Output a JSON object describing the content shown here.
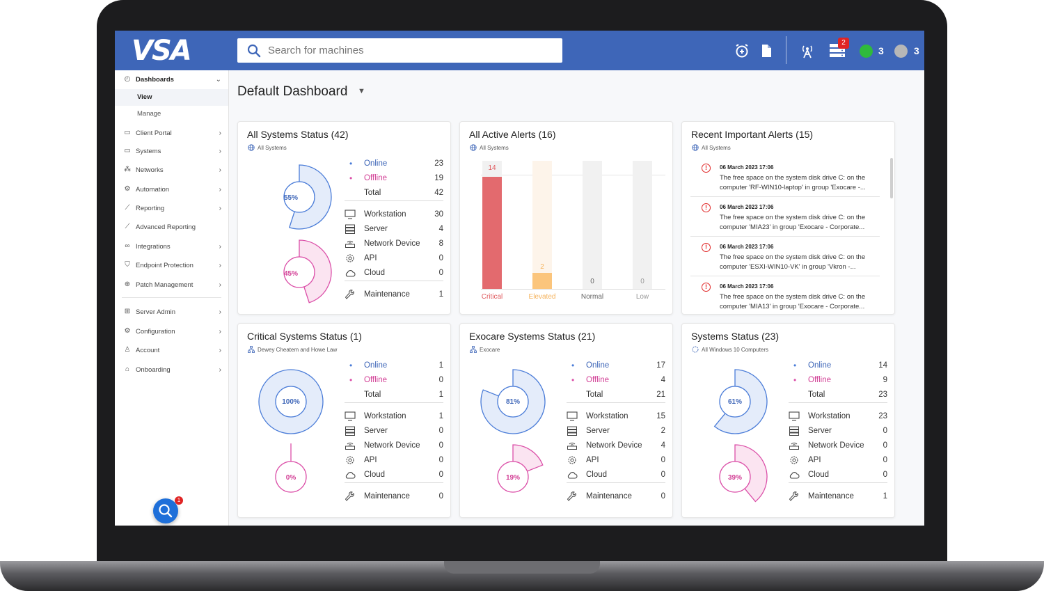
{
  "app": {
    "logo": "VSA"
  },
  "header": {
    "search_placeholder": "Search for machines",
    "notifications_count": "2",
    "online_count": "3",
    "offline_count": "3",
    "colors": {
      "bar": "#3e66b8",
      "online": "#2fba3c",
      "offline": "#b7b7b7",
      "badge": "#e02424"
    }
  },
  "sidebar": {
    "dashboards": "Dashboards",
    "view": "View",
    "manage": "Manage",
    "items": [
      {
        "label": "Client Portal",
        "icon": "window-icon"
      },
      {
        "label": "Systems",
        "icon": "monitor-icon"
      },
      {
        "label": "Networks",
        "icon": "network-icon"
      },
      {
        "label": "Automation",
        "icon": "automation-icon"
      },
      {
        "label": "Reporting",
        "icon": "chart-icon"
      },
      {
        "label": "Advanced Reporting",
        "icon": "chart-icon"
      },
      {
        "label": "Integrations",
        "icon": "infinity-icon"
      },
      {
        "label": "Endpoint Protection",
        "icon": "shield-icon"
      },
      {
        "label": "Patch Management",
        "icon": "patch-icon"
      },
      {
        "label": "Server Admin",
        "icon": "sitemap-icon"
      },
      {
        "label": "Configuration",
        "icon": "gear-icon"
      },
      {
        "label": "Account",
        "icon": "user-icon"
      },
      {
        "label": "Onboarding",
        "icon": "onboarding-icon"
      }
    ],
    "help_badge": "1"
  },
  "page": {
    "title": "Default Dashboard"
  },
  "status_labels": {
    "online": "Online",
    "offline": "Offline",
    "total": "Total",
    "workstation": "Workstation",
    "server": "Server",
    "network": "Network Device",
    "api": "API",
    "cloud": "Cloud",
    "maintenance": "Maintenance"
  },
  "cards": {
    "all_systems": {
      "title": "All Systems Status (42)",
      "scope": "All Systems",
      "online_pct": "55%",
      "offline_pct": "45%",
      "online": "23",
      "offline": "19",
      "total": "42",
      "workstation": "30",
      "server": "4",
      "network": "8",
      "api": "0",
      "cloud": "0",
      "maintenance": "1"
    },
    "alerts": {
      "title": "All Active Alerts (16)",
      "scope": "All Systems"
    },
    "recent": {
      "title": "Recent Important Alerts (15)",
      "scope": "All Systems",
      "items": [
        {
          "date": "06 March 2023 17:06",
          "line1": "The free space on the system disk drive C: on the",
          "line2": "computer 'RF-WIN10-laptop' in group 'Exocare -..."
        },
        {
          "date": "06 March 2023 17:06",
          "line1": "The free space on the system disk drive C: on the",
          "line2": "computer 'MIA23' in group 'Exocare - Corporate..."
        },
        {
          "date": "06 March 2023 17:06",
          "line1": "The free space on the system disk drive C: on the",
          "line2": "computer 'ESXI-WIN10-VK' in group 'Vkron -..."
        },
        {
          "date": "06 March 2023 17:06",
          "line1": "The free space on the system disk drive C: on the",
          "line2": "computer 'MIA13' in group 'Exocare - Corporate..."
        }
      ]
    },
    "critical": {
      "title": "Critical Systems Status (1)",
      "scope": "Dewey Cheatem and Howe Law",
      "online_pct": "100%",
      "offline_pct": "0%",
      "online": "1",
      "offline": "0",
      "total": "1",
      "workstation": "1",
      "server": "0",
      "network": "0",
      "api": "0",
      "cloud": "0",
      "maintenance": "0"
    },
    "exocare": {
      "title": "Exocare Systems Status (21)",
      "scope": "Exocare",
      "online_pct": "81%",
      "offline_pct": "19%",
      "online": "17",
      "offline": "4",
      "total": "21",
      "workstation": "15",
      "server": "2",
      "network": "4",
      "api": "0",
      "cloud": "0",
      "maintenance": "0"
    },
    "systems": {
      "title": "Systems Status (23)",
      "scope": "All Windows 10 Computers",
      "online_pct": "61%",
      "offline_pct": "39%",
      "online": "14",
      "offline": "9",
      "total": "23",
      "workstation": "23",
      "server": "0",
      "network": "0",
      "api": "0",
      "cloud": "0",
      "maintenance": "1"
    }
  },
  "chart_data": {
    "type": "bar",
    "categories": [
      "Critical",
      "Elevated",
      "Normal",
      "Low"
    ],
    "values": [
      14,
      2,
      0,
      0
    ],
    "colors": [
      "#e36a6e",
      "#fbc57c",
      "#e6e6e6",
      "#e6e6e6"
    ],
    "label_colors": [
      "#e05a5e",
      "#f5b25b",
      "#666666",
      "#999999"
    ],
    "ylim": [
      0,
      16
    ]
  }
}
